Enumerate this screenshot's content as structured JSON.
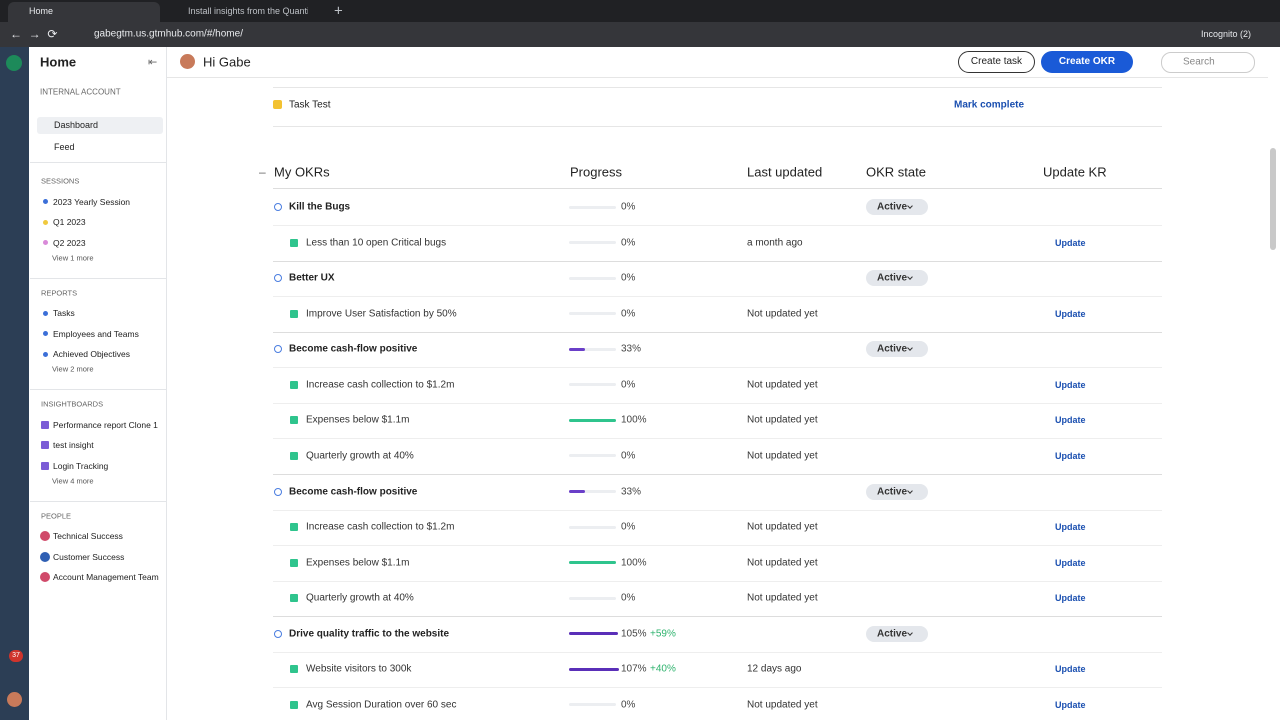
{
  "browser": {
    "tabs": [
      "Home",
      "Install insights from the Quantive"
    ],
    "url": "gabegtm.us.gtmhub.com/#/home/",
    "profile": "Incognito (2)"
  },
  "rail": {
    "badge": "37"
  },
  "sidebar": {
    "title": "Home",
    "account": "INTERNAL ACCOUNT",
    "nav": [
      "Dashboard",
      "Feed"
    ],
    "sections": [
      {
        "title": "SESSIONS",
        "items": [
          {
            "label": "2023 Yearly Session",
            "color": "#3b6fd8"
          },
          {
            "label": "Q1 2023",
            "color": "#f0c93e"
          },
          {
            "label": "Q2 2023",
            "color": "#d98ad9"
          }
        ],
        "more": "View 1 more"
      },
      {
        "title": "REPORTS",
        "items": [
          {
            "label": "Tasks",
            "color": "#3b6fd8"
          },
          {
            "label": "Employees and Teams",
            "color": "#3b6fd8"
          },
          {
            "label": "Achieved Objectives",
            "color": "#3b6fd8"
          }
        ],
        "more": "View 2 more"
      },
      {
        "title": "INSIGHTBOARDS",
        "items": [
          {
            "label": "Performance report Clone 1",
            "color": "#7b5cd6"
          },
          {
            "label": "test insight",
            "color": "#7b5cd6"
          },
          {
            "label": "Login Tracking",
            "color": "#7b5cd6"
          }
        ],
        "more": "View 4 more"
      },
      {
        "title": "PEOPLE",
        "items": [
          {
            "label": "Technical Success",
            "color": "#d04a6a"
          },
          {
            "label": "Customer Success",
            "color": "#2f5fb3"
          },
          {
            "label": "Account Management Team",
            "color": "#d04a6a"
          }
        ]
      }
    ]
  },
  "header": {
    "greeting": "Hi Gabe",
    "create_task": "Create task",
    "create_okr": "Create OKR",
    "search": "Search"
  },
  "task": {
    "name": "Task Test",
    "action": "Mark complete"
  },
  "table": {
    "headers": [
      "My OKRs",
      "Progress",
      "Last updated",
      "OKR state",
      "Update KR"
    ],
    "objectives": [
      {
        "name": "Kill the Bugs",
        "progress": {
          "value": 0,
          "label": "0%"
        },
        "state": "Active",
        "key_results": [
          {
            "name": "Less than 10 open Critical bugs",
            "progress": {
              "value": 0,
              "label": "0%"
            },
            "updated": "a month ago",
            "action": "Update"
          }
        ]
      },
      {
        "name": "Better UX",
        "progress": {
          "value": 0,
          "label": "0%"
        },
        "state": "Active",
        "key_results": [
          {
            "name": "Improve User Satisfaction by 50%",
            "progress": {
              "value": 0,
              "label": "0%"
            },
            "updated": "Not updated yet",
            "action": "Update"
          }
        ]
      },
      {
        "name": "Become cash-flow positive",
        "progress": {
          "value": 33,
          "label": "33%",
          "color": "#6a3fc8"
        },
        "state": "Active",
        "key_results": [
          {
            "name": "Increase cash collection to $1.2m",
            "progress": {
              "value": 0,
              "label": "0%"
            },
            "updated": "Not updated yet",
            "action": "Update"
          },
          {
            "name": "Expenses below $1.1m",
            "progress": {
              "value": 100,
              "label": "100%",
              "color": "#2fc48d"
            },
            "updated": "Not updated yet",
            "action": "Update"
          },
          {
            "name": "Quarterly growth at 40%",
            "progress": {
              "value": 0,
              "label": "0%"
            },
            "updated": "Not updated yet",
            "action": "Update"
          }
        ]
      },
      {
        "name": "Become cash-flow positive",
        "progress": {
          "value": 33,
          "label": "33%",
          "color": "#6a3fc8"
        },
        "state": "Active",
        "key_results": [
          {
            "name": "Increase cash collection to $1.2m",
            "progress": {
              "value": 0,
              "label": "0%"
            },
            "updated": "Not updated yet",
            "action": "Update"
          },
          {
            "name": "Expenses below $1.1m",
            "progress": {
              "value": 100,
              "label": "100%",
              "color": "#2fc48d"
            },
            "updated": "Not updated yet",
            "action": "Update"
          },
          {
            "name": "Quarterly growth at 40%",
            "progress": {
              "value": 0,
              "label": "0%"
            },
            "updated": "Not updated yet",
            "action": "Update"
          }
        ]
      },
      {
        "name": "Drive quality traffic to the website",
        "progress": {
          "value": 105,
          "label": "105%",
          "color": "#5a2fb8"
        },
        "change": "+59%",
        "state": "Active",
        "key_results": [
          {
            "name": "Website visitors to 300k",
            "progress": {
              "value": 107,
              "label": "107%",
              "color": "#5a2fb8"
            },
            "change": "+40%",
            "updated": "12 days ago",
            "action": "Update"
          },
          {
            "name": "Avg Session Duration over 60 sec",
            "progress": {
              "value": 0,
              "label": "0%"
            },
            "updated": "Not updated yet",
            "action": "Update"
          }
        ]
      }
    ]
  }
}
